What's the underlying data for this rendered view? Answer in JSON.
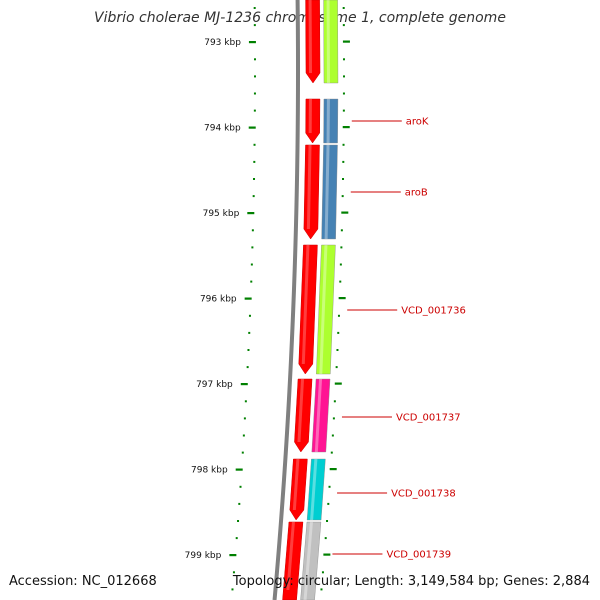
{
  "title": "Vibrio cholerae MJ-1236 chromosome 1, complete genome",
  "footer": {
    "accession": "Accession: NC_012668",
    "topology": "Topology: circular; Length: 3,149,584 bp; Genes: 2,884"
  },
  "colors": {
    "backbone": "#808080",
    "tick": "#008000",
    "label": "#cc0000",
    "cds": "#ff0000"
  },
  "ruler_labels": [
    "793 kbp",
    "794 kbp",
    "795 kbp",
    "796 kbp",
    "797 kbp",
    "798 kbp",
    "799 kbp"
  ],
  "genes": [
    {
      "label": "",
      "color": "#adff2f"
    },
    {
      "label": "aroK",
      "color": "#4682b4"
    },
    {
      "label": "aroB",
      "color": "#4682b4"
    },
    {
      "label": "VCD_001736",
      "color": "#adff2f"
    },
    {
      "label": "VCD_001737",
      "color": "#ff1493"
    },
    {
      "label": "VCD_001738",
      "color": "#00ced1"
    },
    {
      "label": "VCD_001739",
      "color": "#c0c0c0"
    }
  ]
}
